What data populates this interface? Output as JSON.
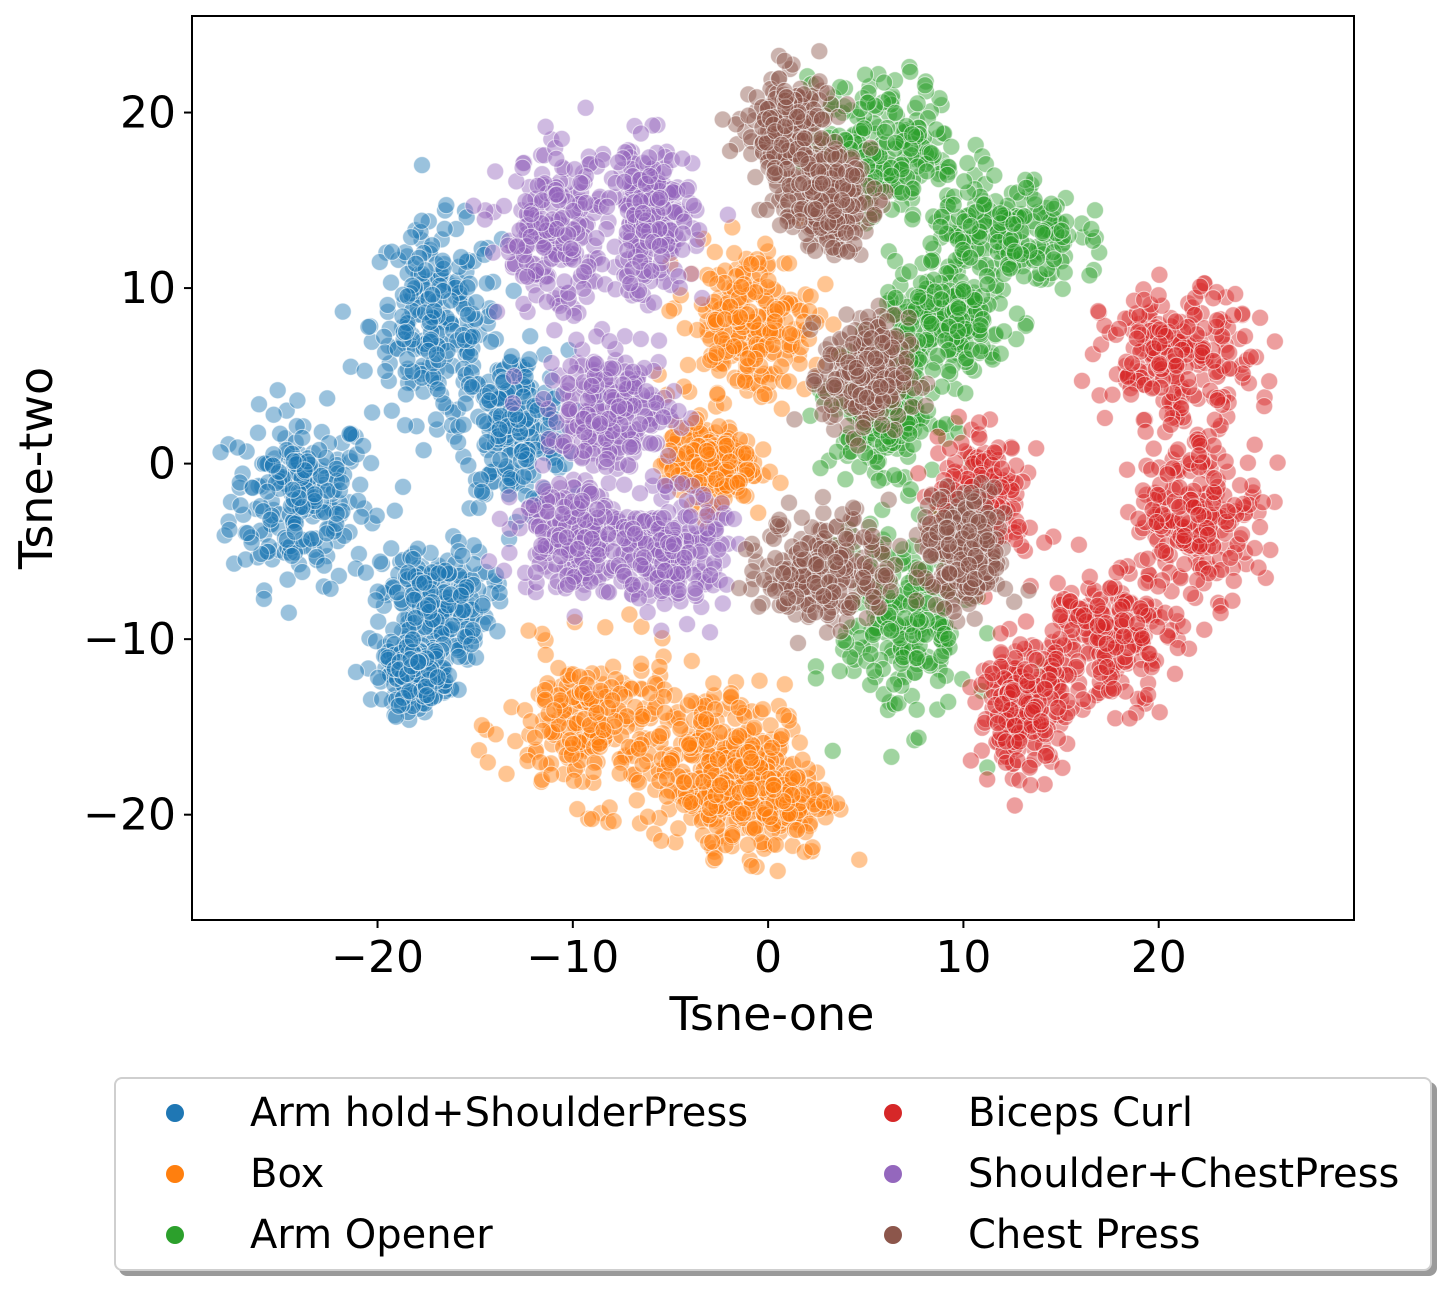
{
  "chart_data": {
    "type": "scatter",
    "xlabel": "Tsne-one",
    "ylabel": "Tsne-two",
    "xlim": [
      -29.5,
      30
    ],
    "ylim": [
      -26,
      25.5
    ],
    "xticks": [
      -20,
      -10,
      0,
      10,
      20
    ],
    "yticks": [
      -20,
      -10,
      0,
      10,
      20
    ],
    "xtick_labels": [
      "−20",
      "−10",
      "0",
      "10",
      "20"
    ],
    "ytick_labels": [
      "−20",
      "−10",
      "0",
      "10",
      "20"
    ],
    "legend_placement": "below",
    "series": [
      {
        "name": "Arm hold+ShoulderPress",
        "color": "#1f77b4",
        "clusters": [
          [
            -24,
            -2,
            3.2,
            4.5
          ],
          [
            -17,
            8,
            3,
            5
          ],
          [
            -13,
            2,
            2.5,
            4
          ],
          [
            -17,
            -8,
            2.5,
            3
          ],
          [
            -18,
            -12,
            1.5,
            1.5
          ]
        ]
      },
      {
        "name": "Box",
        "color": "#ff7f0e",
        "clusters": [
          [
            -9,
            -15,
            4,
            4
          ],
          [
            -3,
            -17,
            3.5,
            4
          ],
          [
            0,
            -19,
            3,
            3
          ],
          [
            -1,
            8,
            3,
            4
          ],
          [
            -3,
            0,
            2,
            2
          ]
        ]
      },
      {
        "name": "Arm Opener",
        "color": "#2ca02c",
        "clusters": [
          [
            6,
            18,
            3.5,
            3.5
          ],
          [
            12,
            13,
            3.5,
            3
          ],
          [
            9,
            8,
            3,
            2.5
          ],
          [
            6,
            3,
            2.5,
            3
          ],
          [
            7,
            -9,
            3,
            5
          ]
        ]
      },
      {
        "name": "Biceps Curl",
        "color": "#d62728",
        "clusters": [
          [
            21,
            6,
            3.5,
            3.5
          ],
          [
            22,
            -3,
            3,
            4
          ],
          [
            17,
            -10,
            3.5,
            3.5
          ],
          [
            13,
            -14,
            2,
            3
          ],
          [
            11,
            -2,
            2,
            3
          ]
        ]
      },
      {
        "name": "Shoulder+ChestPress",
        "color": "#9467bd",
        "clusters": [
          [
            -11,
            13,
            2.5,
            4
          ],
          [
            -6,
            14,
            2,
            4
          ],
          [
            -8,
            3,
            3,
            3
          ],
          [
            -10,
            -4,
            2.5,
            3
          ],
          [
            -5,
            -5,
            2.5,
            3
          ]
        ]
      },
      {
        "name": "Chest Press",
        "color": "#8c564b",
        "clusters": [
          [
            1,
            19,
            2,
            3
          ],
          [
            3,
            15,
            2,
            2.5
          ],
          [
            3,
            -6,
            3,
            3
          ],
          [
            10,
            -5,
            2,
            3
          ],
          [
            5,
            5,
            2,
            3
          ]
        ]
      }
    ]
  },
  "legend": {
    "entries": [
      "Arm hold+ShoulderPress",
      "Box",
      "Arm Opener",
      "Biceps Curl",
      "Shoulder+ChestPress",
      "Chest Press"
    ],
    "colors": [
      "#1f77b4",
      "#ff7f0e",
      "#2ca02c",
      "#d62728",
      "#9467bd",
      "#8c564b"
    ]
  }
}
